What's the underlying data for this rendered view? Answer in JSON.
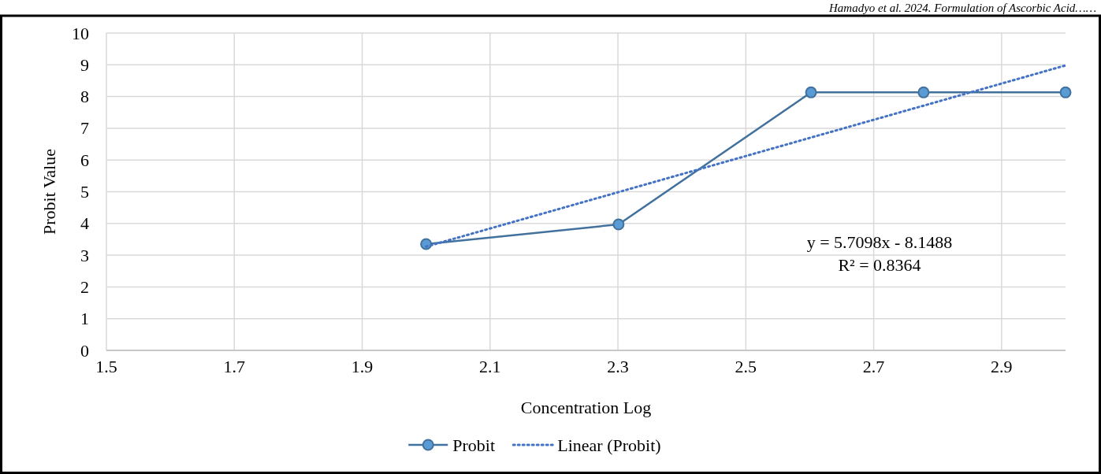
{
  "chart_data": {
    "type": "line",
    "xlabel": "Concentration Log",
    "ylabel": "Probit Value",
    "xlim": [
      1.5,
      3.0
    ],
    "xticks": [
      1.5,
      1.7,
      1.9,
      2.1,
      2.3,
      2.5,
      2.7,
      2.9
    ],
    "ylim": [
      0,
      10
    ],
    "yticks": [
      0,
      1,
      2,
      3,
      4,
      5,
      6,
      7,
      8,
      9,
      10
    ],
    "grid": true,
    "legend": "bottom",
    "series": [
      {
        "name": "Probit",
        "color": "#41719c",
        "x": [
          2.0,
          2.301,
          2.602,
          2.778,
          3.0
        ],
        "values": [
          3.35,
          3.97,
          8.13,
          8.13,
          8.13
        ],
        "marker": "circle",
        "line_style": "solid"
      },
      {
        "name": "Linear (Probit)",
        "color": "#4472c4",
        "x": [
          2.0,
          3.0
        ],
        "values": [
          3.27,
          8.98
        ],
        "marker": "none",
        "line_style": "dotted"
      }
    ],
    "annotations": [
      "y = 5.7098x - 8.1488",
      "R² = 0.8364",
      "Hamadyo et al. 2024. Formulation of Ascorbic Acid……"
    ]
  }
}
